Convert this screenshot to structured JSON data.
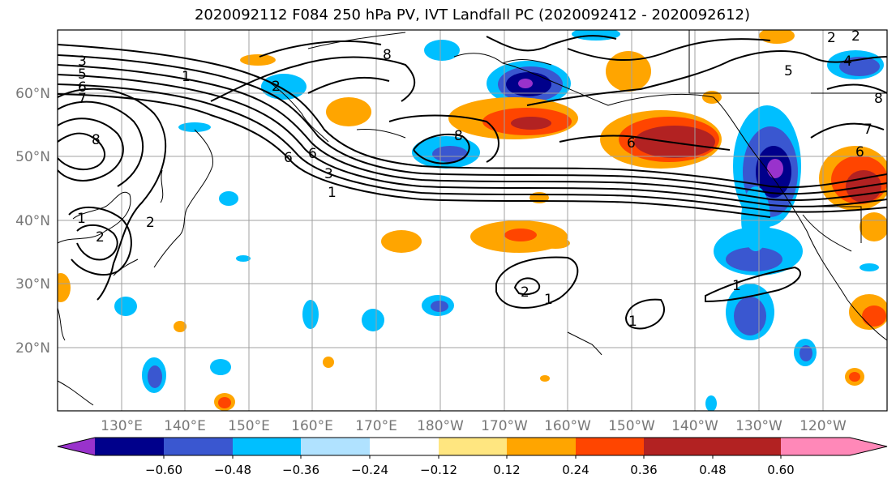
{
  "title": "2020092112 F084 250 hPa PV, IVT Landfall PC (2020092412 - 2020092612)",
  "map": {
    "lat_labels": [
      "20°N",
      "30°N",
      "40°N",
      "50°N",
      "60°N"
    ],
    "lon_labels": [
      "130°E",
      "140°E",
      "150°E",
      "160°E",
      "170°E",
      "180°W",
      "170°W",
      "160°W",
      "150°W",
      "140°W",
      "130°W",
      "120°W"
    ],
    "contour_labels": [
      "3",
      "5",
      "6",
      "7",
      "1",
      "8",
      "1",
      "2",
      "2",
      "6",
      "3",
      "1",
      "8",
      "6",
      "5",
      "8",
      "1",
      "2",
      "1",
      "1",
      "2",
      "6",
      "7",
      "8",
      "4",
      "2",
      "2",
      "6"
    ]
  },
  "colorbar": {
    "ticks": [
      "−0.60",
      "−0.48",
      "−0.36",
      "−0.24",
      "−0.12",
      "0.12",
      "0.24",
      "0.36",
      "0.48",
      "0.60"
    ],
    "colors": [
      "#9932cc",
      "#00008b",
      "#3a57d0",
      "#00bfff",
      "#b0e2ff",
      "#ffffff",
      "#ffe680",
      "#ffa500",
      "#ff4500",
      "#b22222",
      "#ff88b8"
    ]
  }
}
